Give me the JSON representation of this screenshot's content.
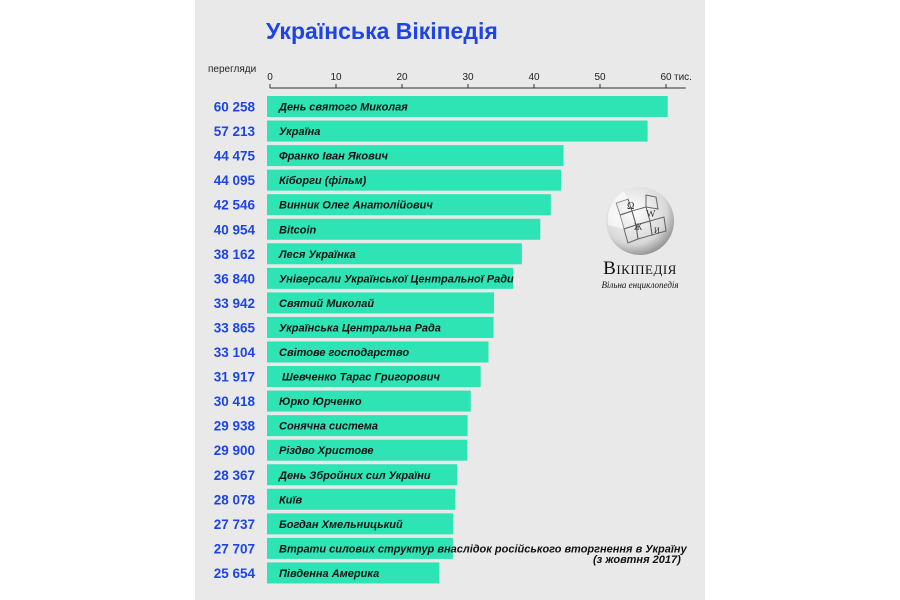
{
  "chart_data": {
    "type": "bar",
    "orientation": "horizontal",
    "title": "Українська Вікіпедія",
    "xlabel": "перегляди",
    "x_unit": "тис.",
    "xlim": [
      0,
      63
    ],
    "ticks": [
      0,
      10,
      20,
      30,
      40,
      50,
      60
    ],
    "tick_labels": [
      "0",
      "10",
      "20",
      "30",
      "40",
      "50",
      "60"
    ],
    "bar_color": "#2ee3b4",
    "value_color": "#1d45e6",
    "categories": [
      "День святого Миколая",
      "Україна",
      "Франко Іван Якович",
      "Кіборги (фільм)",
      "Винник Олег Анатолійович",
      "Bitcoin",
      "Леся Українка",
      "Універсали Української Центральної Ради",
      "Святий Миколай",
      "Українська Центральна Рада",
      "Світове господарство",
      " Шевченко Тарас Григорович",
      "Юрко Юрченко",
      "Сонячна система",
      "Різдво Христове",
      "День Збройних сил України",
      "Київ",
      "Богдан Хмельницький",
      "Втрати силових структур внаслідок російського вторгнення в Україну",
      "Південна Америка"
    ],
    "values": [
      60258,
      57213,
      44475,
      44095,
      42546,
      40954,
      38162,
      36840,
      33942,
      33865,
      33104,
      31917,
      30418,
      29938,
      29900,
      28367,
      28078,
      27737,
      27707,
      25654
    ],
    "value_labels": [
      "60 258",
      "57 213",
      "44 475",
      "44 095",
      "42 546",
      "40 954",
      "38 162",
      "36 840",
      "33 942",
      "33 865",
      "33 104",
      "31 917",
      "30 418",
      "29 938",
      "29 900",
      "28 367",
      "28 078",
      "27 737",
      "27 707",
      "25 654"
    ],
    "annotation": "(з жовтня 2017)"
  },
  "logo": {
    "name": "Вікіпедія",
    "tagline": "Вільна енциклопедія"
  }
}
